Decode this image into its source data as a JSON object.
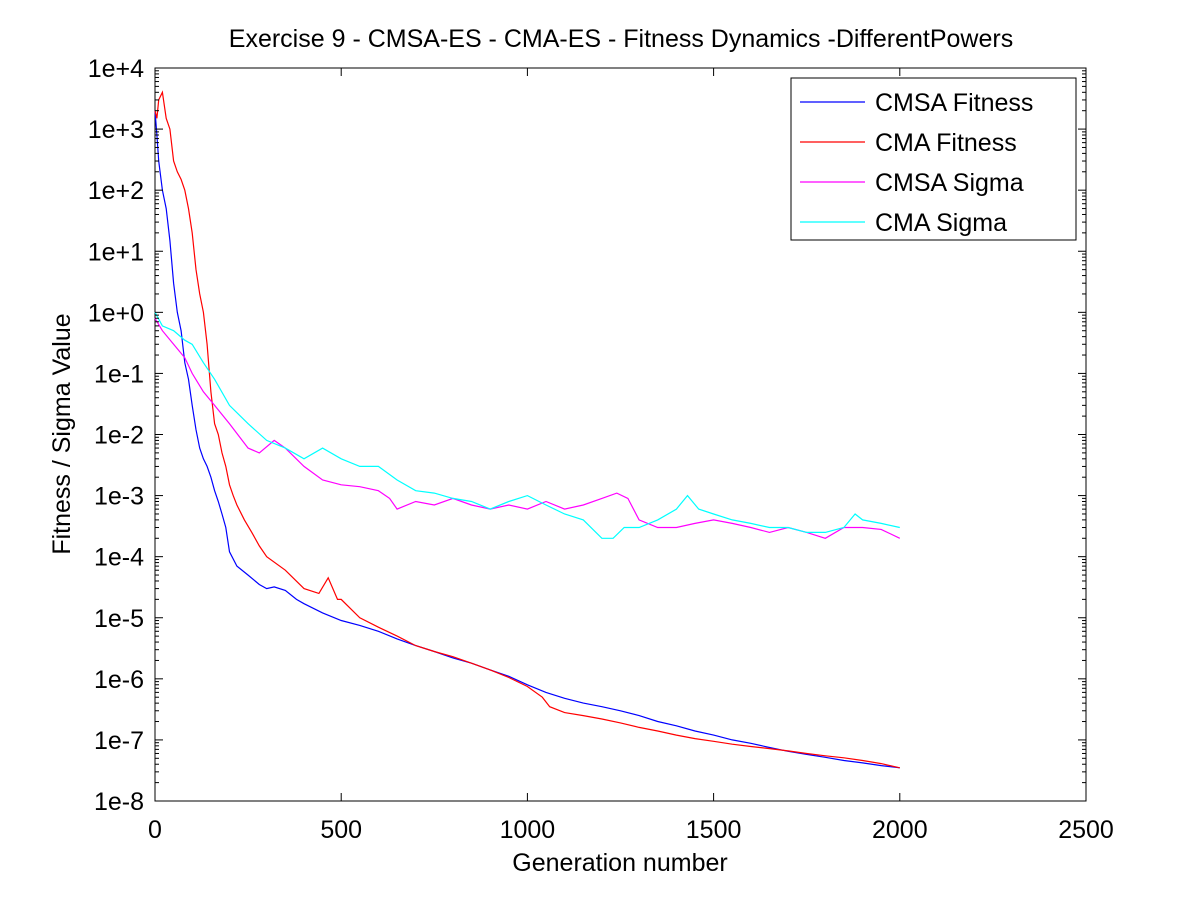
{
  "chart_data": {
    "type": "line",
    "title": "Exercise 9 - CMSA-ES - CMA-ES - Fitness Dynamics -DifferentPowers",
    "xlabel": "Generation number",
    "ylabel": "Fitness / Sigma Value",
    "xlim": [
      0,
      2500
    ],
    "ylim": [
      1e-08,
      10000.0
    ],
    "yscale": "log",
    "xticks": [
      0,
      500,
      1000,
      1500,
      2000,
      2500
    ],
    "xtick_labels": [
      "0",
      "500",
      "1000",
      "1500",
      "2000",
      "2500"
    ],
    "yticks": [
      1e-08,
      1e-07,
      1e-06,
      1e-05,
      0.0001,
      0.001,
      0.01,
      0.1,
      1,
      10,
      100,
      1000,
      10000
    ],
    "ytick_labels": [
      "1e-8",
      "1e-7",
      "1e-6",
      "1e-5",
      "1e-4",
      "1e-3",
      "1e-2",
      "1e-1",
      "1e+0",
      "1e+1",
      "1e+2",
      "1e+3",
      "1e+4"
    ],
    "grid": false,
    "legend_position": "top-right",
    "series": [
      {
        "name": "CMSA Fitness",
        "color": "#0000ff",
        "x": [
          0,
          5,
          10,
          20,
          30,
          40,
          50,
          60,
          70,
          80,
          90,
          100,
          110,
          120,
          130,
          140,
          150,
          160,
          170,
          180,
          190,
          200,
          220,
          250,
          280,
          300,
          320,
          350,
          380,
          400,
          450,
          500,
          550,
          600,
          650,
          700,
          750,
          800,
          850,
          900,
          950,
          1000,
          1050,
          1100,
          1150,
          1200,
          1250,
          1300,
          1350,
          1400,
          1450,
          1500,
          1550,
          1600,
          1650,
          1700,
          1750,
          1800,
          1850,
          1900,
          1950,
          2000
        ],
        "y": [
          2000,
          800,
          300,
          100,
          50,
          15,
          3,
          1,
          0.5,
          0.15,
          0.08,
          0.03,
          0.012,
          0.006,
          0.004,
          0.003,
          0.002,
          0.0012,
          0.0008,
          0.0005,
          0.0003,
          0.00012,
          7e-05,
          5e-05,
          3.5e-05,
          3e-05,
          3.2e-05,
          2.8e-05,
          2e-05,
          1.7e-05,
          1.2e-05,
          9e-06,
          7.5e-06,
          6e-06,
          4.5e-06,
          3.5e-06,
          2.8e-06,
          2.2e-06,
          1.8e-06,
          1.4e-06,
          1.1e-06,
          8e-07,
          6e-07,
          4.8e-07,
          4e-07,
          3.5e-07,
          3e-07,
          2.5e-07,
          2e-07,
          1.7e-07,
          1.4e-07,
          1.2e-07,
          1e-07,
          8.8e-08,
          7.5e-08,
          6.5e-08,
          5.8e-08,
          5.2e-08,
          4.6e-08,
          4.2e-08,
          3.8e-08,
          3.5e-08
        ]
      },
      {
        "name": "CMA Fitness",
        "color": "#ff0000",
        "x": [
          0,
          5,
          10,
          20,
          30,
          40,
          50,
          60,
          70,
          80,
          90,
          100,
          110,
          120,
          130,
          140,
          150,
          160,
          170,
          180,
          190,
          200,
          210,
          220,
          240,
          260,
          280,
          300,
          350,
          400,
          440,
          465,
          490,
          500,
          550,
          600,
          650,
          700,
          750,
          800,
          850,
          900,
          950,
          1000,
          1040,
          1060,
          1100,
          1150,
          1200,
          1250,
          1300,
          1350,
          1400,
          1450,
          1500,
          1550,
          1600,
          1650,
          1700,
          1750,
          1800,
          1850,
          1900,
          1950,
          2000
        ],
        "y": [
          2000,
          1500,
          3000,
          4000,
          1500,
          1000,
          300,
          200,
          150,
          100,
          50,
          20,
          5,
          2,
          1,
          0.3,
          0.05,
          0.015,
          0.01,
          0.005,
          0.003,
          0.0015,
          0.001,
          0.0007,
          0.0004,
          0.00025,
          0.00015,
          0.0001,
          6e-05,
          3e-05,
          2.5e-05,
          4.5e-05,
          2e-05,
          2e-05,
          1e-05,
          7e-06,
          5e-06,
          3.5e-06,
          2.8e-06,
          2.3e-06,
          1.8e-06,
          1.4e-06,
          1.05e-06,
          7.5e-07,
          5e-07,
          3.5e-07,
          2.8e-07,
          2.5e-07,
          2.2e-07,
          1.9e-07,
          1.6e-07,
          1.4e-07,
          1.2e-07,
          1.05e-07,
          9.5e-08,
          8.5e-08,
          7.8e-08,
          7.2e-08,
          6.6e-08,
          6e-08,
          5.5e-08,
          5.1e-08,
          4.6e-08,
          4.1e-08,
          3.5e-08
        ]
      },
      {
        "name": "CMSA Sigma",
        "color": "#ff00ff",
        "x": [
          0,
          20,
          50,
          80,
          100,
          130,
          160,
          200,
          250,
          280,
          320,
          350,
          400,
          450,
          500,
          550,
          600,
          630,
          650,
          700,
          750,
          800,
          850,
          900,
          950,
          1000,
          1050,
          1100,
          1150,
          1200,
          1240,
          1270,
          1300,
          1350,
          1400,
          1450,
          1500,
          1550,
          1600,
          1650,
          1700,
          1750,
          1800,
          1850,
          1900,
          1950,
          2000
        ],
        "y": [
          0.8,
          0.5,
          0.3,
          0.18,
          0.1,
          0.05,
          0.03,
          0.015,
          0.006,
          0.005,
          0.008,
          0.006,
          0.003,
          0.0018,
          0.0015,
          0.0014,
          0.0012,
          0.0009,
          0.0006,
          0.0008,
          0.0007,
          0.0009,
          0.0007,
          0.0006,
          0.0007,
          0.0006,
          0.0008,
          0.0006,
          0.0007,
          0.0009,
          0.0011,
          0.0009,
          0.0004,
          0.0003,
          0.0003,
          0.00035,
          0.0004,
          0.00035,
          0.0003,
          0.00025,
          0.0003,
          0.00025,
          0.0002,
          0.0003,
          0.0003,
          0.00028,
          0.0002
        ]
      },
      {
        "name": "CMA Sigma",
        "color": "#00ffff",
        "x": [
          0,
          20,
          50,
          80,
          100,
          130,
          160,
          200,
          250,
          300,
          350,
          400,
          450,
          500,
          550,
          600,
          650,
          700,
          750,
          800,
          850,
          900,
          950,
          1000,
          1050,
          1100,
          1150,
          1200,
          1230,
          1260,
          1300,
          1350,
          1400,
          1430,
          1460,
          1500,
          1550,
          1600,
          1650,
          1700,
          1750,
          1800,
          1850,
          1880,
          1900,
          1950,
          2000
        ],
        "y": [
          1.0,
          0.6,
          0.5,
          0.35,
          0.3,
          0.15,
          0.08,
          0.03,
          0.015,
          0.008,
          0.006,
          0.004,
          0.006,
          0.004,
          0.003,
          0.003,
          0.0018,
          0.0012,
          0.0011,
          0.0009,
          0.0008,
          0.0006,
          0.0008,
          0.001,
          0.0007,
          0.0005,
          0.0004,
          0.0002,
          0.0002,
          0.0003,
          0.0003,
          0.0004,
          0.0006,
          0.001,
          0.0006,
          0.0005,
          0.0004,
          0.00035,
          0.0003,
          0.0003,
          0.00025,
          0.00025,
          0.0003,
          0.0005,
          0.0004,
          0.00035,
          0.0003
        ]
      }
    ]
  }
}
